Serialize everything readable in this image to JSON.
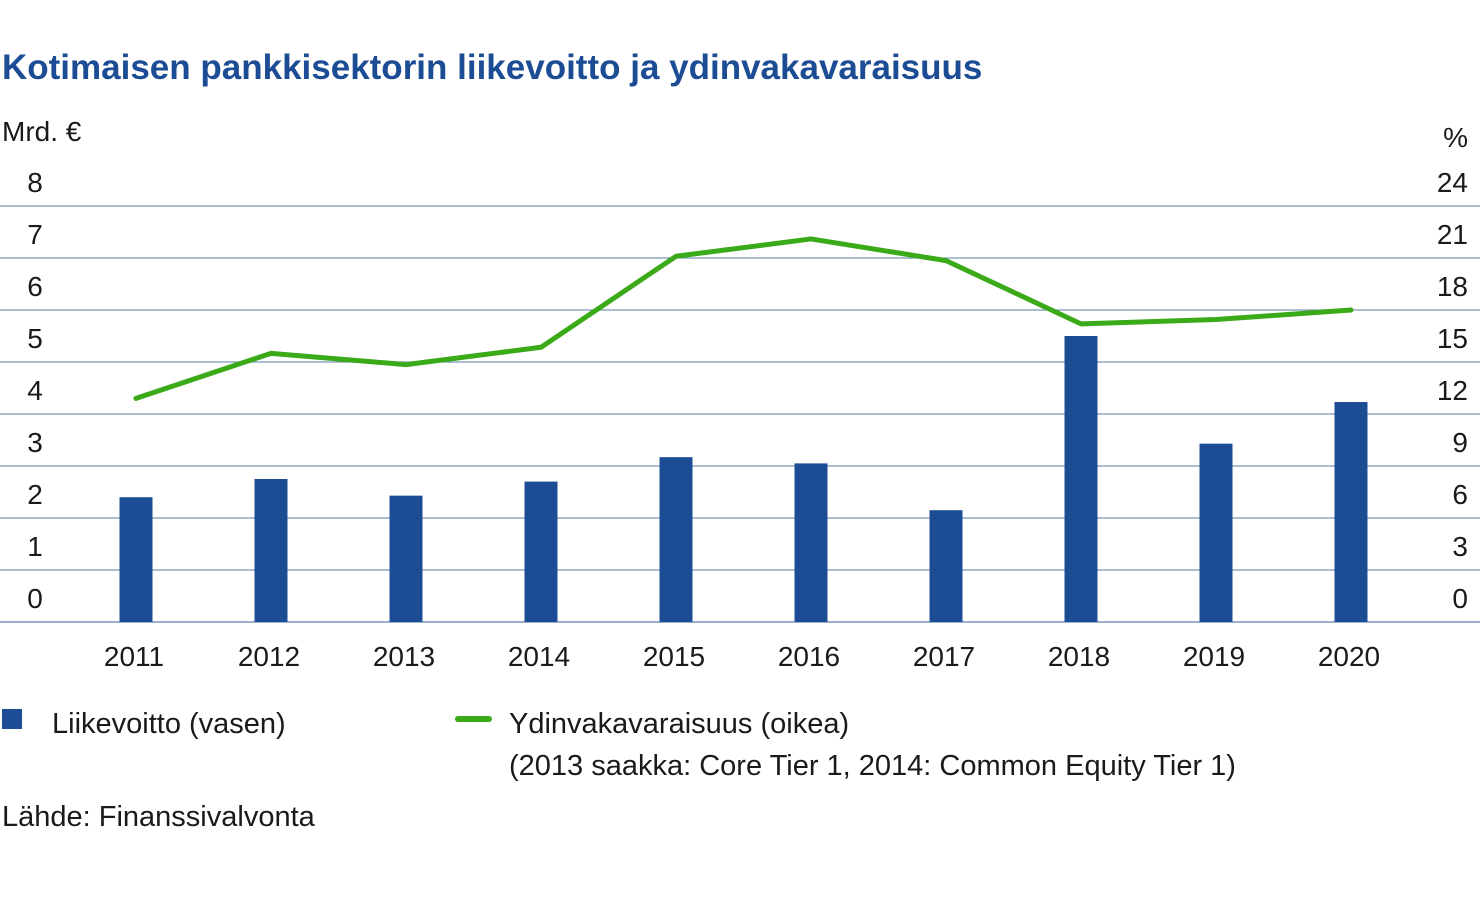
{
  "colors": {
    "title": "#1c4c94",
    "bar": "#1c4c94",
    "line": "#3aaa18",
    "grid": "#7a97b8",
    "text": "#1a1a1a"
  },
  "chart_data": {
    "type": "bar",
    "title": "Kotimaisen pankkisektorin liikevoitto ja ydinvakavaraisuus",
    "left_axis_label": "Mrd. €",
    "right_axis_label": "%",
    "left_ylim": [
      0,
      8
    ],
    "right_ylim": [
      0,
      24
    ],
    "left_ticks": [
      "0",
      "1",
      "2",
      "3",
      "4",
      "5",
      "6",
      "7",
      "8"
    ],
    "right_ticks": [
      "0",
      "3",
      "6",
      "9",
      "12",
      "15",
      "18",
      "21",
      "24"
    ],
    "grid": true,
    "categories": [
      "2011",
      "2012",
      "2013",
      "2014",
      "2015",
      "2016",
      "2017",
      "2018",
      "2019",
      "2020"
    ],
    "series": [
      {
        "name": "Liikevoitto (vasen)",
        "type": "bar",
        "axis": "left",
        "values": [
          2.4,
          2.75,
          2.43,
          2.7,
          3.17,
          3.05,
          2.15,
          5.5,
          3.43,
          4.23
        ]
      },
      {
        "name": "Ydinvakavaraisuus (oikea)",
        "type": "line",
        "axis": "right",
        "note": "(2013 saakka: Core Tier 1, 2014: Common Equity Tier 1)",
        "values": [
          12.9,
          15.5,
          14.85,
          15.85,
          21.1,
          22.1,
          20.85,
          17.2,
          17.45,
          18.0
        ]
      }
    ],
    "source": "Lähde: Finanssivalvonta"
  }
}
